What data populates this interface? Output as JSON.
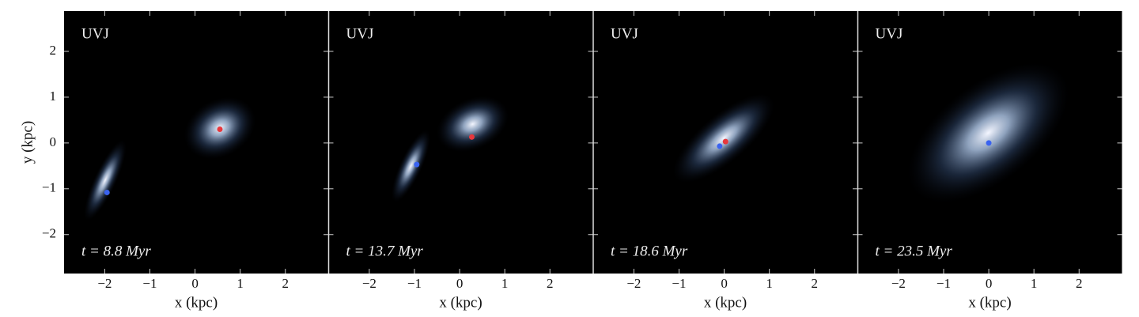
{
  "chart_data": [
    {
      "type": "scatter",
      "label": "UVJ",
      "annotation": "t = 8.8 Myr",
      "x_label": "x (kpc)",
      "y_label": "y (kpc)",
      "xlim": [
        -2.9,
        2.95
      ],
      "ylim": [
        -2.85,
        2.88
      ],
      "xticks": [
        {
          "value": -2,
          "label": "−2"
        },
        {
          "value": -1,
          "label": "−1"
        },
        0,
        1,
        2
      ],
      "yticks": [
        {
          "value": -2,
          "label": "−2"
        },
        {
          "value": -1,
          "label": "−1"
        },
        0,
        1,
        2
      ],
      "series": [
        {
          "color": "#e8383d",
          "x": [
            0.55
          ],
          "y": [
            0.3
          ]
        },
        {
          "color": "#3a63f0",
          "x": [
            -1.95
          ],
          "y": [
            -1.08
          ]
        }
      ]
    },
    {
      "type": "scatter",
      "label": "UVJ",
      "annotation": "t = 13.7 Myr",
      "x_label": "x (kpc)",
      "xlim": [
        -2.9,
        2.95
      ],
      "ylim": [
        -2.85,
        2.88
      ],
      "xticks": [
        {
          "value": -2,
          "label": "−2"
        },
        {
          "value": -1,
          "label": "−1"
        },
        0,
        1,
        2
      ],
      "yticks": [
        -2,
        -1,
        0,
        1,
        2
      ],
      "series": [
        {
          "color": "#e8383d",
          "x": [
            0.27
          ],
          "y": [
            0.13
          ]
        },
        {
          "color": "#3a63f0",
          "x": [
            -0.95
          ],
          "y": [
            -0.47
          ]
        }
      ]
    },
    {
      "type": "scatter",
      "label": "UVJ",
      "annotation": "t = 18.6 Myr",
      "x_label": "x (kpc)",
      "xlim": [
        -2.9,
        2.95
      ],
      "ylim": [
        -2.85,
        2.88
      ],
      "xticks": [
        {
          "value": -2,
          "label": "−2"
        },
        {
          "value": -1,
          "label": "−1"
        },
        0,
        1,
        2
      ],
      "yticks": [
        -2,
        -1,
        0,
        1,
        2
      ],
      "series": [
        {
          "color": "#e8383d",
          "x": [
            0.03
          ],
          "y": [
            0.03
          ]
        },
        {
          "color": "#3a63f0",
          "x": [
            -0.1
          ],
          "y": [
            -0.07
          ]
        }
      ]
    },
    {
      "type": "scatter",
      "label": "UVJ",
      "annotation": "t = 23.5 Myr",
      "x_label": "x (kpc)",
      "xlim": [
        -2.9,
        2.95
      ],
      "ylim": [
        -2.85,
        2.88
      ],
      "xticks": [
        {
          "value": -2,
          "label": "−2"
        },
        {
          "value": -1,
          "label": "−1"
        },
        0,
        1,
        2
      ],
      "yticks": [
        -2,
        -1,
        0,
        1,
        2
      ],
      "series": [
        {
          "color": "#3a63f0",
          "x": [
            0
          ],
          "y": [
            0
          ]
        }
      ]
    }
  ]
}
